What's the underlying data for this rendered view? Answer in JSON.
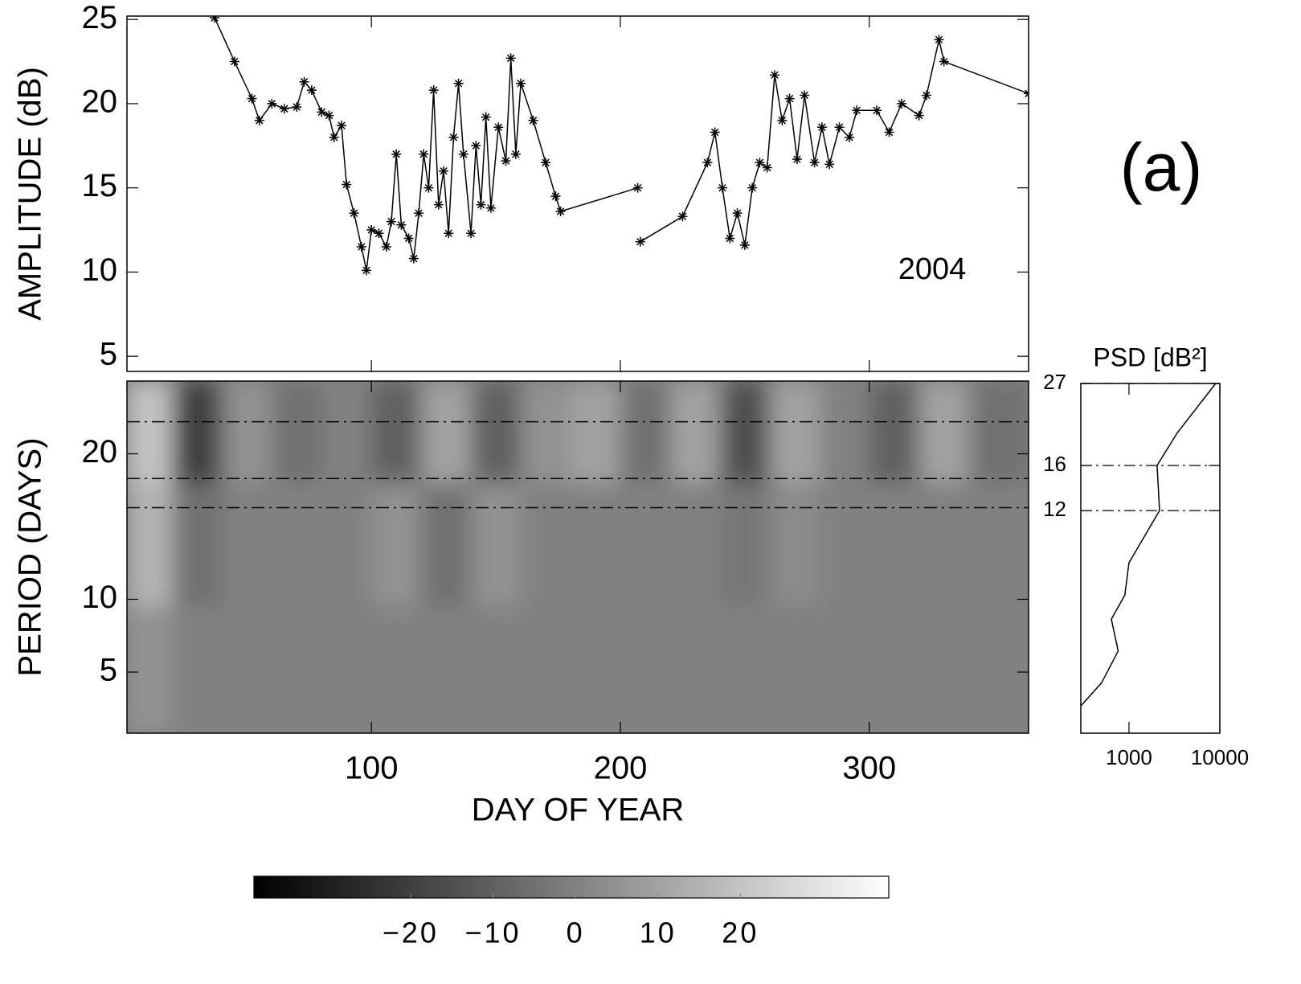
{
  "chart_data": [
    {
      "type": "line",
      "ylabel": "AMPLITUDE (dB)",
      "annotation": "2004",
      "panel_label": "(a)",
      "xlim": [
        1.8,
        364
      ],
      "ylim": [
        4.1,
        25.2
      ],
      "xticks": [
        100,
        200,
        300
      ],
      "yticks": [
        5,
        10,
        15,
        20,
        25
      ],
      "show_xtick_labels": false,
      "color": "#000000",
      "x": [
        37,
        45,
        52,
        55,
        60,
        65,
        70,
        73,
        76,
        80,
        83,
        85,
        88,
        90,
        93,
        96,
        98,
        100,
        103,
        106,
        108,
        110,
        112,
        115,
        117,
        119,
        121,
        123,
        125,
        127,
        129,
        131,
        133,
        135,
        137,
        140,
        142,
        144,
        146,
        148,
        151,
        154,
        156,
        158,
        160,
        165,
        170,
        174,
        176,
        207,
        207.5,
        208,
        225,
        235,
        238,
        241,
        244,
        247,
        250,
        253,
        256,
        259,
        262,
        265,
        268,
        271,
        274,
        278,
        281,
        284,
        288,
        292,
        295,
        303,
        308,
        313,
        320,
        323,
        328,
        330,
        364
      ],
      "values": [
        25.1,
        22.5,
        20.3,
        19,
        20,
        19.7,
        19.8,
        21.3,
        20.8,
        19.5,
        19.3,
        18,
        18.7,
        15.2,
        13.5,
        11.5,
        10.1,
        12.5,
        12.3,
        11.5,
        13,
        17,
        12.8,
        12,
        10.8,
        13.5,
        17,
        15,
        20.8,
        14,
        16,
        12.3,
        18,
        21.2,
        17,
        12.3,
        17.5,
        14,
        19.2,
        13.8,
        18.6,
        16.6,
        22.7,
        17,
        21.2,
        19,
        16.5,
        14.5,
        13.6,
        15,
        null,
        11.8,
        13.3,
        16.5,
        18.3,
        15,
        12,
        13.5,
        11.6,
        15,
        16.5,
        16.2,
        21.7,
        19,
        20.3,
        16.7,
        20.5,
        16.5,
        18.6,
        16.4,
        18.6,
        18,
        19.6,
        19.6,
        18.3,
        20,
        19.3,
        20.5,
        23.8,
        22.5,
        20.6
      ]
    },
    {
      "type": "heatmap",
      "xlabel": "DAY OF YEAR",
      "ylabel": "PERIOD (DAYS)",
      "xlim": [
        1.8,
        364
      ],
      "ylim": [
        0.8,
        25
      ],
      "xticks": [
        100,
        200,
        300
      ],
      "yticks": [
        5,
        10,
        20
      ],
      "x": [
        10,
        30,
        50,
        70,
        90,
        110,
        130,
        150,
        170,
        190,
        210,
        230,
        250,
        270,
        290,
        310,
        330,
        350
      ],
      "y": [
        22,
        14,
        5
      ],
      "z": [
        [
          20,
          -20,
          5,
          -5,
          0,
          -10,
          10,
          -10,
          5,
          10,
          -5,
          10,
          -15,
          10,
          0,
          -10,
          10,
          -5
        ],
        [
          15,
          -5,
          0,
          0,
          0,
          5,
          -5,
          5,
          0,
          0,
          0,
          0,
          -3,
          3,
          0,
          0,
          0,
          0
        ],
        [
          5,
          0,
          0,
          0,
          0,
          0,
          0,
          0,
          0,
          0,
          0,
          0,
          0,
          0,
          0,
          0,
          0,
          0
        ]
      ],
      "hlines": [
        22.2,
        18.3,
        16.3
      ],
      "colorbar": {
        "lim": [
          -39,
          38
        ],
        "ticks": [
          {
            "value": -20,
            "label": "−20"
          },
          {
            "value": -10,
            "label": "−10"
          },
          0,
          10,
          20
        ]
      }
    },
    {
      "type": "line",
      "title": "PSD [dB²]",
      "xlog": true,
      "ylog": true,
      "grid": true,
      "color": "#000000",
      "xlim": [
        295,
        10000
      ],
      "ylim": [
        2.9,
        27
      ],
      "xticks": [
        1000,
        10000
      ],
      "yticks": [
        27,
        16,
        12
      ],
      "x": [
        9000,
        3400,
        2040,
        2170,
        1000,
        900,
        640,
        760,
        500,
        295
      ],
      "values": [
        27,
        19.7,
        16,
        12,
        8.6,
        7.0,
        6.0,
        4.9,
        4.0,
        3.45
      ]
    }
  ]
}
